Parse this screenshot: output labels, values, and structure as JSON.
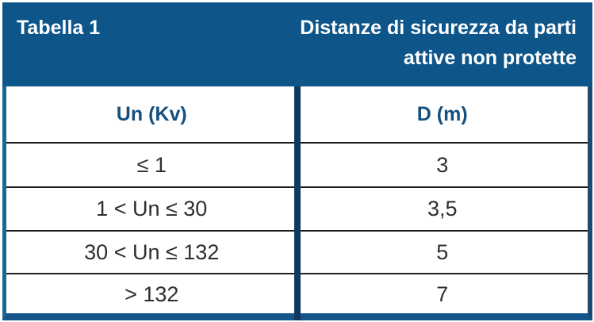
{
  "header": {
    "left_title": "Tabella 1",
    "right_title_line1": "Distanze di sicurezza da parti",
    "right_title_line2": "attive non protette"
  },
  "table": {
    "columns": [
      "Un (Kv)",
      "D (m)"
    ],
    "rows": [
      {
        "un": "≤ 1",
        "d": "3"
      },
      {
        "un": "1 < Un ≤ 30",
        "d": "3,5"
      },
      {
        "un": "30 < Un ≤ 132",
        "d": "5"
      },
      {
        "un": "> 132",
        "d": "7"
      }
    ]
  },
  "colors": {
    "band_blue": "#0E5689",
    "divider_navy": "#0E3A60",
    "border_left_blue": "#1E6496",
    "border_right_navy": "#1B4B72",
    "bottom_bar_blue": "#14568A",
    "header_text_blue": "#14517F",
    "cell_text": "#2E2E2E",
    "row_line": "#1F1F1F",
    "band_text": "#FFFFFF"
  }
}
